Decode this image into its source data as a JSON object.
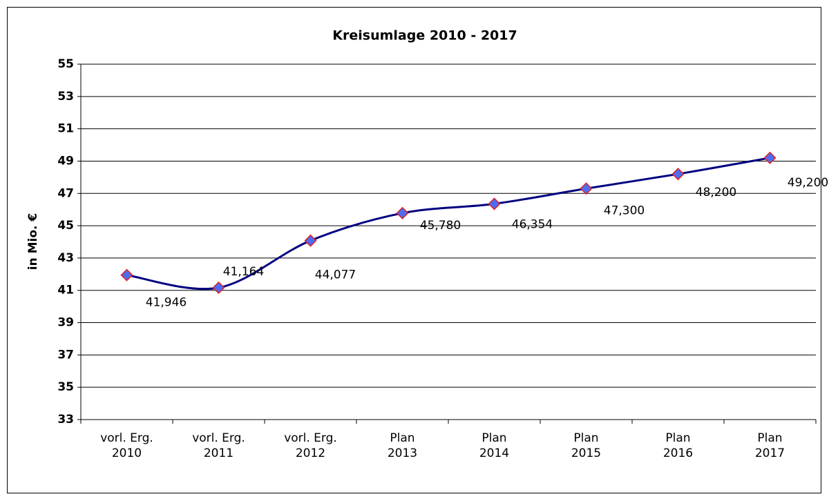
{
  "chart_data": {
    "type": "line",
    "title": "Kreisumlage  2010  - 2017",
    "ylabel": "in Mio. €",
    "categories": [
      [
        "vorl. Erg.",
        "2010"
      ],
      [
        "vorl. Erg.",
        "2011"
      ],
      [
        "vorl. Erg.",
        "2012"
      ],
      [
        "Plan",
        "2013"
      ],
      [
        "Plan",
        "2014"
      ],
      [
        "Plan",
        "2015"
      ],
      [
        "Plan",
        "2016"
      ],
      [
        "Plan",
        "2017"
      ]
    ],
    "values": [
      41.946,
      41.164,
      44.077,
      45.78,
      46.354,
      47.3,
      48.2,
      49.2
    ],
    "value_labels": [
      "41,946",
      "41,164",
      "44,077",
      "45,780",
      "46,354",
      "47,300",
      "48,200",
      "49,200"
    ],
    "color": "#000080",
    "marker_color": "#4f6cf0",
    "marker_edge_color": "#e02020",
    "smooth": true,
    "grid": true,
    "ylim": [
      33,
      55
    ],
    "yticks": [
      33,
      35,
      37,
      39,
      41,
      43,
      45,
      47,
      49,
      51,
      53,
      55
    ]
  }
}
